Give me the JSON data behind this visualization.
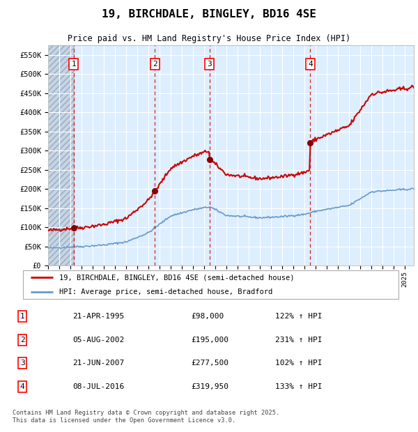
{
  "title": "19, BIRCHDALE, BINGLEY, BD16 4SE",
  "subtitle": "Price paid vs. HM Land Registry's House Price Index (HPI)",
  "ylim": [
    0,
    575000
  ],
  "yticks": [
    0,
    50000,
    100000,
    150000,
    200000,
    250000,
    300000,
    350000,
    400000,
    450000,
    500000,
    550000
  ],
  "ytick_labels": [
    "£0",
    "£50K",
    "£100K",
    "£150K",
    "£200K",
    "£250K",
    "£300K",
    "£350K",
    "£400K",
    "£450K",
    "£500K",
    "£550K"
  ],
  "xlim_start": 1993.0,
  "xlim_end": 2025.8,
  "sale_dates": [
    1995.31,
    2002.59,
    2007.47,
    2016.52
  ],
  "sale_prices": [
    98000,
    195000,
    277500,
    319950
  ],
  "sale_labels": [
    "1",
    "2",
    "3",
    "4"
  ],
  "red_line_color": "#cc0000",
  "blue_line_color": "#6699cc",
  "sale_marker_color": "#880000",
  "dashed_line_color": "#cc0000",
  "plot_bg_color": "#ddeeff",
  "grid_color": "#ffffff",
  "legend_entries": [
    "19, BIRCHDALE, BINGLEY, BD16 4SE (semi-detached house)",
    "HPI: Average price, semi-detached house, Bradford"
  ],
  "table_data": [
    [
      "1",
      "21-APR-1995",
      "£98,000",
      "122% ↑ HPI"
    ],
    [
      "2",
      "05-AUG-2002",
      "£195,000",
      "231% ↑ HPI"
    ],
    [
      "3",
      "21-JUN-2007",
      "£277,500",
      "102% ↑ HPI"
    ],
    [
      "4",
      "08-JUL-2016",
      "£319,950",
      "133% ↑ HPI"
    ]
  ],
  "footer": "Contains HM Land Registry data © Crown copyright and database right 2025.\nThis data is licensed under the Open Government Licence v3.0."
}
